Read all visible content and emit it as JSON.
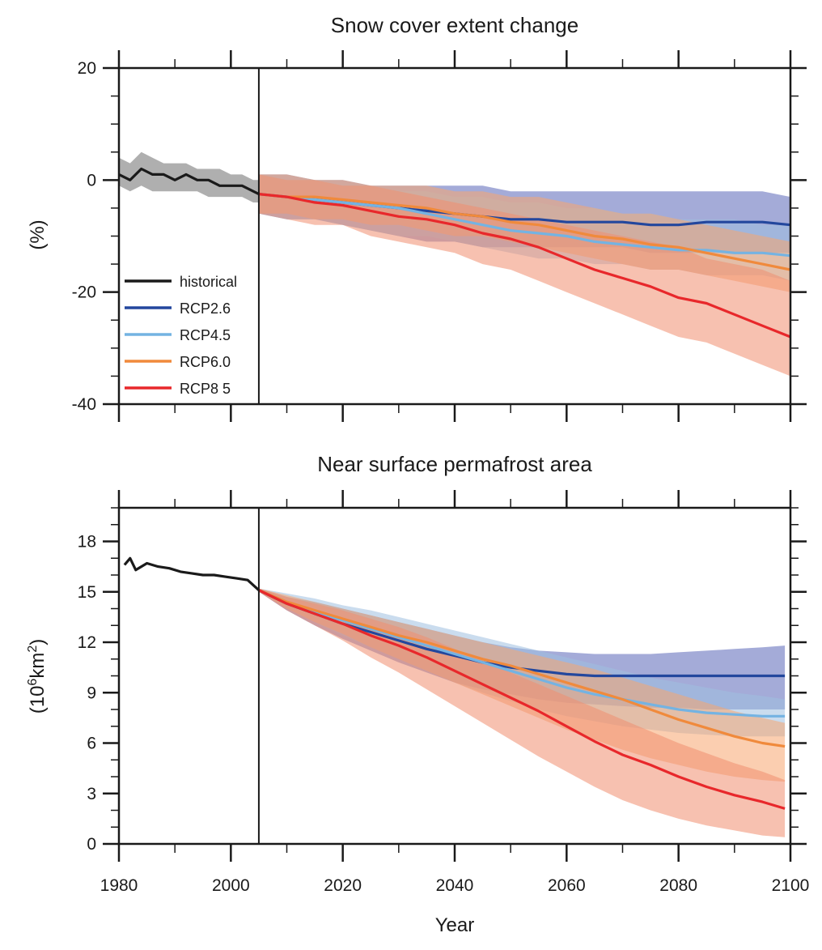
{
  "chart_data": [
    {
      "type": "line",
      "title": "Snow cover extent change",
      "ylabel": "(%)",
      "xlabel": "",
      "xlim": [
        1980,
        2100
      ],
      "ylim": [
        -40,
        20
      ],
      "y_ticks": [
        20,
        0,
        -20,
        -40
      ],
      "y_tick_labels": [
        "20",
        "0",
        "-20",
        "-40"
      ],
      "x_tick_labels": [],
      "divider_year": 2005,
      "legend": {
        "placement": "lower-left",
        "entries": [
          {
            "label": "historical",
            "color": "#1a1a1a"
          },
          {
            "label": "RCP2.6",
            "color": "#23479d"
          },
          {
            "label": "RCP4.5",
            "color": "#74b3e2"
          },
          {
            "label": "RCP6.0",
            "color": "#f08a3c"
          },
          {
            "label": "RCP8 5",
            "color": "#e8282b"
          }
        ]
      },
      "series": [
        {
          "name": "historical",
          "color": "#1a1a1a",
          "band_color": "#6d6d6d",
          "x": [
            1980,
            1982,
            1984,
            1986,
            1988,
            1990,
            1992,
            1994,
            1996,
            1998,
            2000,
            2002,
            2004,
            2005
          ],
          "y": [
            1,
            0,
            2,
            1,
            1,
            0,
            1,
            0,
            0,
            -1,
            -1,
            -1,
            -2,
            -2.5
          ],
          "lower": [
            -1,
            -2,
            -1,
            -2,
            -2,
            -2,
            -2,
            -2,
            -3,
            -3,
            -3,
            -3,
            -4,
            -4
          ],
          "upper": [
            4,
            3,
            5,
            4,
            3,
            3,
            3,
            2,
            2,
            2,
            1,
            1,
            0,
            0
          ]
        },
        {
          "name": "RCP2.6",
          "color": "#23479d",
          "band_color": "#5a66b8",
          "x": [
            2005,
            2010,
            2015,
            2020,
            2025,
            2030,
            2035,
            2040,
            2045,
            2050,
            2055,
            2060,
            2065,
            2070,
            2075,
            2080,
            2085,
            2090,
            2095,
            2100
          ],
          "y": [
            -2.5,
            -3,
            -3.5,
            -4,
            -4.5,
            -5,
            -5.5,
            -6,
            -6.5,
            -7,
            -7,
            -7.5,
            -7.5,
            -7.5,
            -8,
            -8,
            -7.5,
            -7.5,
            -7.5,
            -8
          ],
          "lower": [
            -6,
            -7,
            -7,
            -8,
            -9,
            -10,
            -11,
            -11,
            -12,
            -12,
            -12,
            -12,
            -12,
            -12,
            -13,
            -13,
            -13,
            -13,
            -13,
            -13
          ],
          "upper": [
            1,
            1,
            0,
            0,
            -1,
            -1,
            -1,
            -1,
            -1,
            -2,
            -2,
            -2,
            -2,
            -2,
            -2,
            -2,
            -2,
            -2,
            -2,
            -3
          ]
        },
        {
          "name": "RCP4.5",
          "color": "#74b3e2",
          "band_color": "#9fbfe0",
          "x": [
            2005,
            2010,
            2015,
            2020,
            2025,
            2030,
            2035,
            2040,
            2045,
            2050,
            2055,
            2060,
            2065,
            2070,
            2075,
            2080,
            2085,
            2090,
            2095,
            2100
          ],
          "y": [
            -2.5,
            -3,
            -3.5,
            -4,
            -4.5,
            -5,
            -6,
            -7,
            -8,
            -9,
            -9.5,
            -10,
            -11,
            -11.5,
            -12,
            -12.5,
            -12.5,
            -13,
            -13,
            -13.5
          ],
          "lower": [
            -6,
            -7,
            -7,
            -8,
            -9,
            -10,
            -10,
            -11,
            -12,
            -13,
            -14,
            -14,
            -15,
            -15,
            -16,
            -16,
            -17,
            -17,
            -17,
            -18
          ],
          "upper": [
            1,
            0,
            0,
            -1,
            -1,
            -2,
            -2,
            -3,
            -3,
            -4,
            -4,
            -5,
            -5,
            -6,
            -6,
            -7,
            -7,
            -7,
            -8,
            -8
          ]
        },
        {
          "name": "RCP6.0",
          "color": "#f08a3c",
          "band_color": "#f7a670",
          "x": [
            2005,
            2010,
            2015,
            2020,
            2025,
            2030,
            2035,
            2040,
            2045,
            2050,
            2055,
            2060,
            2065,
            2070,
            2075,
            2080,
            2085,
            2090,
            2095,
            2100
          ],
          "y": [
            -2.5,
            -3,
            -3,
            -3.5,
            -4,
            -4.5,
            -5,
            -6,
            -6.5,
            -7.5,
            -8,
            -9,
            -10,
            -10.5,
            -11.5,
            -12,
            -13,
            -14,
            -15,
            -16
          ],
          "lower": [
            -6,
            -6,
            -7,
            -7,
            -8,
            -8,
            -9,
            -10,
            -10,
            -11,
            -12,
            -13,
            -14,
            -15,
            -16,
            -16,
            -17,
            -18,
            -19,
            -20
          ],
          "upper": [
            1,
            1,
            0,
            0,
            -1,
            -1,
            -1,
            -2,
            -2,
            -3,
            -3,
            -4,
            -5,
            -6,
            -6,
            -7,
            -8,
            -9,
            -10,
            -11
          ]
        },
        {
          "name": "RCP8 5",
          "color": "#e8282b",
          "band_color": "#f08e70",
          "x": [
            2005,
            2010,
            2015,
            2020,
            2025,
            2030,
            2035,
            2040,
            2045,
            2050,
            2055,
            2060,
            2065,
            2070,
            2075,
            2080,
            2085,
            2090,
            2095,
            2100
          ],
          "y": [
            -2.5,
            -3,
            -4,
            -4.5,
            -5.5,
            -6.5,
            -7,
            -8,
            -9.5,
            -10.5,
            -12,
            -14,
            -16,
            -17.5,
            -19,
            -21,
            -22,
            -24,
            -26,
            -28
          ],
          "lower": [
            -6,
            -7,
            -8,
            -8,
            -10,
            -11,
            -12,
            -13,
            -15,
            -16,
            -18,
            -20,
            -22,
            -24,
            -26,
            -28,
            -29,
            -31,
            -33,
            -35
          ],
          "upper": [
            1,
            0,
            0,
            -1,
            -1,
            -2,
            -3,
            -4,
            -5,
            -6,
            -7,
            -8,
            -9,
            -10,
            -11,
            -12,
            -14,
            -15,
            -16,
            -18
          ]
        }
      ]
    },
    {
      "type": "line",
      "title": "Near surface permafrost area",
      "ylabel_main": "(10",
      "ylabel_sup": "6",
      "ylabel_unit": "km",
      "ylabel_unit_sup": "2",
      "ylabel_close": ")",
      "xlabel": "Year",
      "xlim": [
        1980,
        2100
      ],
      "ylim": [
        0,
        20
      ],
      "y_ticks": [
        0,
        3,
        6,
        9,
        12,
        15,
        18
      ],
      "y_tick_labels": [
        "0",
        "3",
        "6",
        "9",
        "12",
        "15",
        "18"
      ],
      "x_ticks": [
        1980,
        2000,
        2020,
        2040,
        2060,
        2080,
        2100
      ],
      "x_tick_labels": [
        "1980",
        "2000",
        "2020",
        "2040",
        "2060",
        "2080",
        "2100"
      ],
      "divider_year": 2005,
      "series": [
        {
          "name": "historical",
          "color": "#1a1a1a",
          "band_color": null,
          "x": [
            1981,
            1982,
            1983,
            1985,
            1987,
            1989,
            1991,
            1993,
            1995,
            1997,
            1999,
            2001,
            2003,
            2005
          ],
          "y": [
            16.6,
            17.0,
            16.3,
            16.7,
            16.5,
            16.4,
            16.2,
            16.1,
            16.0,
            16.0,
            15.9,
            15.8,
            15.7,
            15.1
          ],
          "lower": null,
          "upper": null
        },
        {
          "name": "RCP2.6",
          "color": "#23479d",
          "band_color": "#5a66b8",
          "x": [
            2005,
            2010,
            2015,
            2020,
            2025,
            2030,
            2035,
            2040,
            2045,
            2050,
            2055,
            2060,
            2065,
            2070,
            2075,
            2080,
            2085,
            2090,
            2095,
            2099
          ],
          "y": [
            15.1,
            14.3,
            13.7,
            13.1,
            12.6,
            12.1,
            11.6,
            11.2,
            10.8,
            10.5,
            10.3,
            10.1,
            10.0,
            10.0,
            10.0,
            10.0,
            10.0,
            10.0,
            10.0,
            10.0
          ],
          "lower": [
            15.0,
            13.9,
            13.0,
            12.2,
            11.5,
            10.8,
            10.2,
            9.6,
            9.2,
            8.9,
            8.6,
            8.4,
            8.3,
            8.2,
            8.1,
            8.1,
            8.0,
            8.0,
            8.0,
            8.0
          ],
          "upper": [
            15.2,
            14.7,
            14.4,
            14.0,
            13.6,
            13.2,
            12.8,
            12.4,
            12.0,
            11.7,
            11.5,
            11.4,
            11.3,
            11.3,
            11.3,
            11.4,
            11.5,
            11.6,
            11.7,
            11.8
          ]
        },
        {
          "name": "RCP4.5",
          "color": "#74b3e2",
          "band_color": "#9fbfe0",
          "x": [
            2005,
            2010,
            2015,
            2020,
            2025,
            2030,
            2035,
            2040,
            2045,
            2050,
            2055,
            2060,
            2065,
            2070,
            2075,
            2080,
            2085,
            2090,
            2095,
            2099
          ],
          "y": [
            15.1,
            14.4,
            13.8,
            13.3,
            12.8,
            12.3,
            11.8,
            11.3,
            10.8,
            10.3,
            9.8,
            9.3,
            8.9,
            8.6,
            8.3,
            8.0,
            7.8,
            7.7,
            7.6,
            7.6
          ],
          "lower": [
            15.0,
            14.0,
            13.2,
            12.4,
            11.7,
            11.0,
            10.3,
            9.6,
            9.0,
            8.5,
            8.0,
            7.6,
            7.3,
            7.0,
            6.8,
            6.6,
            6.5,
            6.4,
            6.4,
            6.4
          ],
          "upper": [
            15.2,
            14.9,
            14.6,
            14.2,
            13.9,
            13.5,
            13.1,
            12.7,
            12.3,
            11.9,
            11.5,
            11.1,
            10.7,
            10.3,
            9.9,
            9.6,
            9.3,
            9.0,
            8.8,
            8.6
          ]
        },
        {
          "name": "RCP6.0",
          "color": "#f08a3c",
          "band_color": "#f7a670",
          "x": [
            2005,
            2010,
            2015,
            2020,
            2025,
            2030,
            2035,
            2040,
            2045,
            2050,
            2055,
            2060,
            2065,
            2070,
            2075,
            2080,
            2085,
            2090,
            2095,
            2099
          ],
          "y": [
            15.1,
            14.4,
            13.9,
            13.4,
            12.9,
            12.4,
            12.0,
            11.5,
            11.0,
            10.6,
            10.1,
            9.6,
            9.1,
            8.6,
            8.0,
            7.4,
            6.9,
            6.4,
            6.0,
            5.8
          ],
          "lower": [
            15.0,
            14.0,
            13.2,
            12.5,
            11.7,
            11.0,
            10.3,
            9.6,
            8.9,
            8.2,
            7.5,
            6.8,
            6.2,
            5.6,
            5.1,
            4.7,
            4.3,
            4.0,
            3.8,
            3.7
          ],
          "upper": [
            15.2,
            14.8,
            14.4,
            14.0,
            13.6,
            13.2,
            12.8,
            12.4,
            12.0,
            11.6,
            11.2,
            10.8,
            10.4,
            9.9,
            9.4,
            8.9,
            8.4,
            7.9,
            7.5,
            7.2
          ]
        },
        {
          "name": "RCP8 5",
          "color": "#e8282b",
          "band_color": "#f08e70",
          "x": [
            2005,
            2010,
            2015,
            2020,
            2025,
            2030,
            2035,
            2040,
            2045,
            2050,
            2055,
            2060,
            2065,
            2070,
            2075,
            2080,
            2085,
            2090,
            2095,
            2099
          ],
          "y": [
            15.1,
            14.3,
            13.7,
            13.1,
            12.4,
            11.8,
            11.1,
            10.3,
            9.5,
            8.7,
            7.9,
            7.0,
            6.1,
            5.3,
            4.7,
            4.0,
            3.4,
            2.9,
            2.5,
            2.1
          ],
          "lower": [
            15.0,
            13.9,
            13.0,
            12.1,
            11.1,
            10.2,
            9.2,
            8.2,
            7.2,
            6.2,
            5.2,
            4.3,
            3.4,
            2.6,
            2.0,
            1.5,
            1.1,
            0.8,
            0.5,
            0.4
          ],
          "upper": [
            15.2,
            14.7,
            14.3,
            13.9,
            13.4,
            12.9,
            12.3,
            11.6,
            10.9,
            10.2,
            9.5,
            8.8,
            8.1,
            7.4,
            6.7,
            6.0,
            5.4,
            4.8,
            4.3,
            3.8
          ]
        }
      ]
    }
  ]
}
